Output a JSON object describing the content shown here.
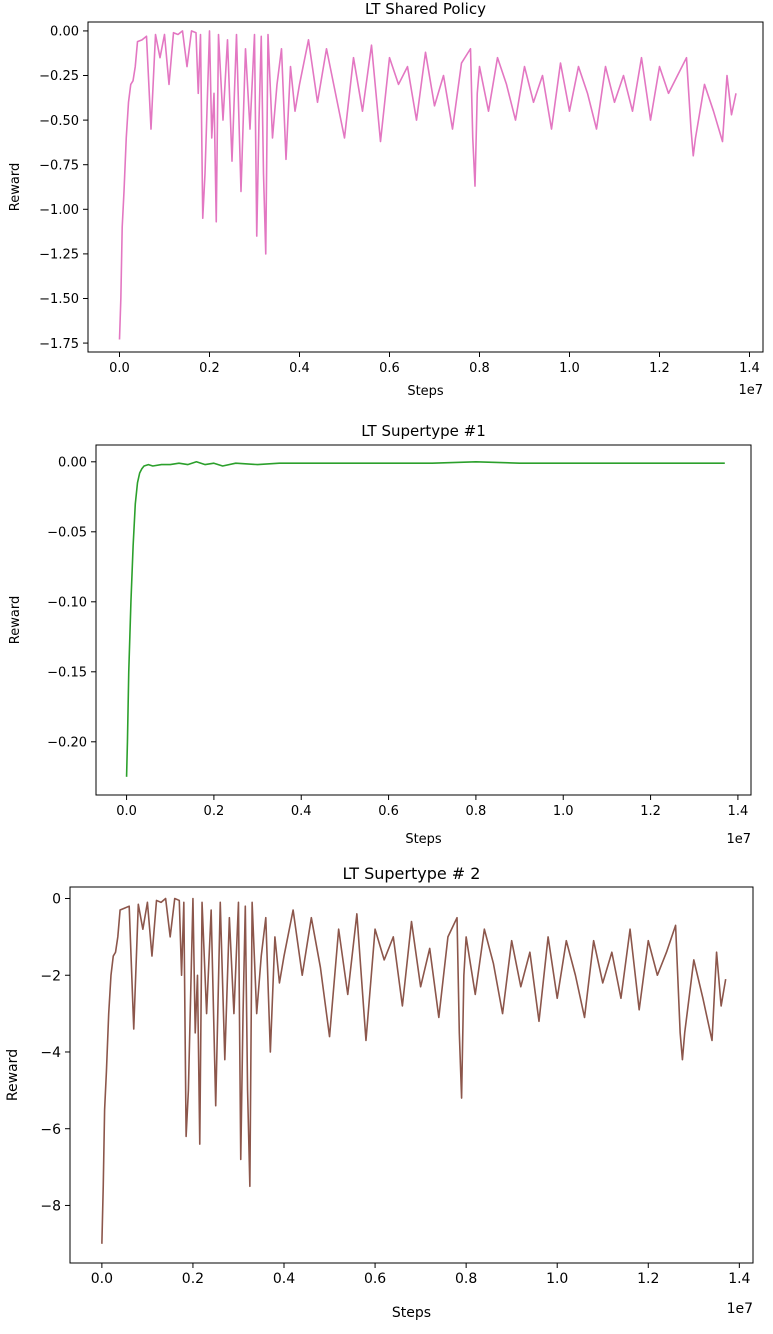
{
  "chart_data": [
    {
      "type": "line",
      "title": "LT Shared Policy",
      "xlabel": "Steps",
      "ylabel": "Reward",
      "x_offset_label": "1e7",
      "xlim": [
        -0.07,
        1.43
      ],
      "ylim": [
        -1.8,
        0.05
      ],
      "xticks": [
        0.0,
        0.2,
        0.4,
        0.6,
        0.8,
        1.0,
        1.2,
        1.4
      ],
      "xtick_labels": [
        "0.0",
        "0.2",
        "0.4",
        "0.6",
        "0.8",
        "1.0",
        "1.2",
        "1.4"
      ],
      "yticks": [
        0.0,
        -0.25,
        -0.5,
        -0.75,
        -1.0,
        -1.25,
        -1.5,
        -1.75
      ],
      "ytick_labels": [
        "0.00",
        "−0.25",
        "−0.50",
        "−0.75",
        "−1.00",
        "−1.25",
        "−1.50",
        "−1.75"
      ],
      "series": [
        {
          "color": "#e377c2",
          "x": [
            0.0,
            0.003,
            0.006,
            0.01,
            0.015,
            0.02,
            0.025,
            0.03,
            0.035,
            0.04,
            0.05,
            0.06,
            0.07,
            0.08,
            0.09,
            0.1,
            0.11,
            0.12,
            0.13,
            0.14,
            0.15,
            0.16,
            0.17,
            0.175,
            0.18,
            0.185,
            0.19,
            0.2,
            0.205,
            0.21,
            0.215,
            0.22,
            0.23,
            0.24,
            0.25,
            0.26,
            0.27,
            0.28,
            0.29,
            0.3,
            0.305,
            0.31,
            0.315,
            0.32,
            0.325,
            0.33,
            0.34,
            0.35,
            0.36,
            0.37,
            0.38,
            0.39,
            0.4,
            0.42,
            0.44,
            0.46,
            0.48,
            0.5,
            0.52,
            0.54,
            0.56,
            0.58,
            0.6,
            0.62,
            0.64,
            0.66,
            0.68,
            0.7,
            0.72,
            0.74,
            0.76,
            0.78,
            0.785,
            0.79,
            0.795,
            0.8,
            0.82,
            0.84,
            0.86,
            0.88,
            0.9,
            0.92,
            0.94,
            0.96,
            0.98,
            1.0,
            1.02,
            1.04,
            1.06,
            1.08,
            1.1,
            1.12,
            1.14,
            1.16,
            1.18,
            1.2,
            1.22,
            1.24,
            1.26,
            1.27,
            1.275,
            1.28,
            1.3,
            1.32,
            1.34,
            1.35,
            1.36,
            1.37
          ],
          "y": [
            -1.73,
            -1.5,
            -1.1,
            -0.9,
            -0.6,
            -0.4,
            -0.3,
            -0.28,
            -0.2,
            -0.06,
            -0.05,
            -0.03,
            -0.55,
            -0.02,
            -0.15,
            -0.02,
            -0.3,
            -0.01,
            -0.02,
            -0.0,
            -0.2,
            -0.0,
            -0.01,
            -0.35,
            -0.02,
            -1.05,
            -0.8,
            -0.0,
            -0.6,
            -0.35,
            -1.07,
            -0.02,
            -0.5,
            -0.05,
            -0.73,
            -0.02,
            -0.9,
            -0.1,
            -0.55,
            -0.02,
            -1.15,
            -0.5,
            -0.03,
            -0.8,
            -1.25,
            -0.02,
            -0.6,
            -0.3,
            -0.1,
            -0.72,
            -0.2,
            -0.45,
            -0.3,
            -0.05,
            -0.4,
            -0.1,
            -0.35,
            -0.6,
            -0.15,
            -0.45,
            -0.08,
            -0.62,
            -0.15,
            -0.3,
            -0.2,
            -0.5,
            -0.12,
            -0.42,
            -0.25,
            -0.55,
            -0.18,
            -0.1,
            -0.6,
            -0.87,
            -0.35,
            -0.2,
            -0.45,
            -0.15,
            -0.3,
            -0.5,
            -0.2,
            -0.4,
            -0.25,
            -0.55,
            -0.18,
            -0.45,
            -0.2,
            -0.35,
            -0.55,
            -0.2,
            -0.4,
            -0.25,
            -0.45,
            -0.15,
            -0.5,
            -0.2,
            -0.35,
            -0.25,
            -0.15,
            -0.55,
            -0.7,
            -0.6,
            -0.3,
            -0.45,
            -0.62,
            -0.25,
            -0.47,
            -0.35
          ]
        }
      ]
    },
    {
      "type": "line",
      "title": "LT Supertype #1",
      "xlabel": "Steps",
      "ylabel": "Reward",
      "x_offset_label": "1e7",
      "xlim": [
        -0.07,
        1.43
      ],
      "ylim": [
        -0.238,
        0.012
      ],
      "xticks": [
        0.0,
        0.2,
        0.4,
        0.6,
        0.8,
        1.0,
        1.2,
        1.4
      ],
      "xtick_labels": [
        "0.0",
        "0.2",
        "0.4",
        "0.6",
        "0.8",
        "1.0",
        "1.2",
        "1.4"
      ],
      "yticks": [
        0.0,
        -0.05,
        -0.1,
        -0.15,
        -0.2
      ],
      "ytick_labels": [
        "0.00",
        "−0.05",
        "−0.10",
        "−0.15",
        "−0.20"
      ],
      "series": [
        {
          "color": "#2ca02c",
          "x": [
            0.0,
            0.002,
            0.005,
            0.01,
            0.015,
            0.02,
            0.025,
            0.03,
            0.035,
            0.04,
            0.05,
            0.06,
            0.08,
            0.1,
            0.12,
            0.14,
            0.16,
            0.18,
            0.2,
            0.22,
            0.25,
            0.3,
            0.35,
            0.4,
            0.5,
            0.6,
            0.7,
            0.8,
            0.9,
            1.0,
            1.1,
            1.2,
            1.3,
            1.37
          ],
          "y": [
            -0.225,
            -0.2,
            -0.15,
            -0.1,
            -0.06,
            -0.03,
            -0.015,
            -0.008,
            -0.005,
            -0.003,
            -0.002,
            -0.003,
            -0.002,
            -0.002,
            -0.001,
            -0.002,
            0.0,
            -0.002,
            -0.001,
            -0.003,
            -0.001,
            -0.002,
            -0.001,
            -0.001,
            -0.001,
            -0.001,
            -0.001,
            0.0,
            -0.001,
            -0.001,
            -0.001,
            -0.001,
            -0.001,
            -0.001
          ]
        }
      ]
    },
    {
      "type": "line",
      "title": "LT Supertype # 2",
      "xlabel": "Steps",
      "ylabel": "Reward",
      "x_offset_label": "1e7",
      "xlim": [
        -0.07,
        1.43
      ],
      "ylim": [
        -9.5,
        0.3
      ],
      "xticks": [
        0.0,
        0.2,
        0.4,
        0.6,
        0.8,
        1.0,
        1.2,
        1.4
      ],
      "xtick_labels": [
        "0.0",
        "0.2",
        "0.4",
        "0.6",
        "0.8",
        "1.0",
        "1.2",
        "1.4"
      ],
      "yticks": [
        0,
        -2,
        -4,
        -6,
        -8
      ],
      "ytick_labels": [
        "0",
        "−2",
        "−4",
        "−6",
        "−8"
      ],
      "series": [
        {
          "color": "#8c564b",
          "x": [
            0.0,
            0.003,
            0.006,
            0.01,
            0.015,
            0.02,
            0.025,
            0.03,
            0.035,
            0.04,
            0.05,
            0.06,
            0.07,
            0.08,
            0.09,
            0.1,
            0.11,
            0.12,
            0.13,
            0.14,
            0.15,
            0.16,
            0.17,
            0.175,
            0.18,
            0.185,
            0.19,
            0.2,
            0.205,
            0.21,
            0.215,
            0.22,
            0.23,
            0.24,
            0.25,
            0.26,
            0.27,
            0.28,
            0.29,
            0.3,
            0.305,
            0.31,
            0.315,
            0.32,
            0.325,
            0.33,
            0.34,
            0.35,
            0.36,
            0.37,
            0.38,
            0.39,
            0.4,
            0.42,
            0.44,
            0.46,
            0.48,
            0.5,
            0.52,
            0.54,
            0.56,
            0.58,
            0.6,
            0.62,
            0.64,
            0.66,
            0.68,
            0.7,
            0.72,
            0.74,
            0.76,
            0.78,
            0.785,
            0.79,
            0.795,
            0.8,
            0.82,
            0.84,
            0.86,
            0.88,
            0.9,
            0.92,
            0.94,
            0.96,
            0.98,
            1.0,
            1.02,
            1.04,
            1.06,
            1.08,
            1.1,
            1.12,
            1.14,
            1.16,
            1.18,
            1.2,
            1.22,
            1.24,
            1.26,
            1.27,
            1.275,
            1.28,
            1.3,
            1.32,
            1.34,
            1.35,
            1.36,
            1.37
          ],
          "y": [
            -9.0,
            -7.5,
            -5.5,
            -4.5,
            -3.0,
            -2.0,
            -1.5,
            -1.4,
            -1.0,
            -0.3,
            -0.25,
            -0.2,
            -3.4,
            -0.15,
            -0.8,
            -0.1,
            -1.5,
            -0.05,
            -0.1,
            0.0,
            -1.0,
            0.0,
            -0.05,
            -2.0,
            -0.1,
            -6.2,
            -5.0,
            0.0,
            -3.5,
            -2.0,
            -6.4,
            -0.1,
            -3.0,
            -0.3,
            -5.4,
            -0.1,
            -4.2,
            -0.5,
            -3.0,
            -0.1,
            -6.8,
            -3.0,
            -0.2,
            -5.0,
            -7.5,
            -0.1,
            -3.0,
            -1.5,
            -0.5,
            -4.0,
            -1.0,
            -2.2,
            -1.5,
            -0.3,
            -2.0,
            -0.5,
            -1.8,
            -3.6,
            -0.8,
            -2.5,
            -0.4,
            -3.7,
            -0.8,
            -1.6,
            -1.0,
            -2.8,
            -0.6,
            -2.3,
            -1.3,
            -3.1,
            -1.0,
            -0.5,
            -3.5,
            -5.2,
            -2.0,
            -1.0,
            -2.5,
            -0.8,
            -1.7,
            -3.0,
            -1.1,
            -2.3,
            -1.4,
            -3.2,
            -1.0,
            -2.6,
            -1.1,
            -2.0,
            -3.1,
            -1.1,
            -2.2,
            -1.4,
            -2.6,
            -0.8,
            -2.9,
            -1.1,
            -2.0,
            -1.4,
            -0.7,
            -3.5,
            -4.2,
            -3.5,
            -1.6,
            -2.6,
            -3.7,
            -1.4,
            -2.8,
            -2.1
          ]
        }
      ]
    }
  ]
}
